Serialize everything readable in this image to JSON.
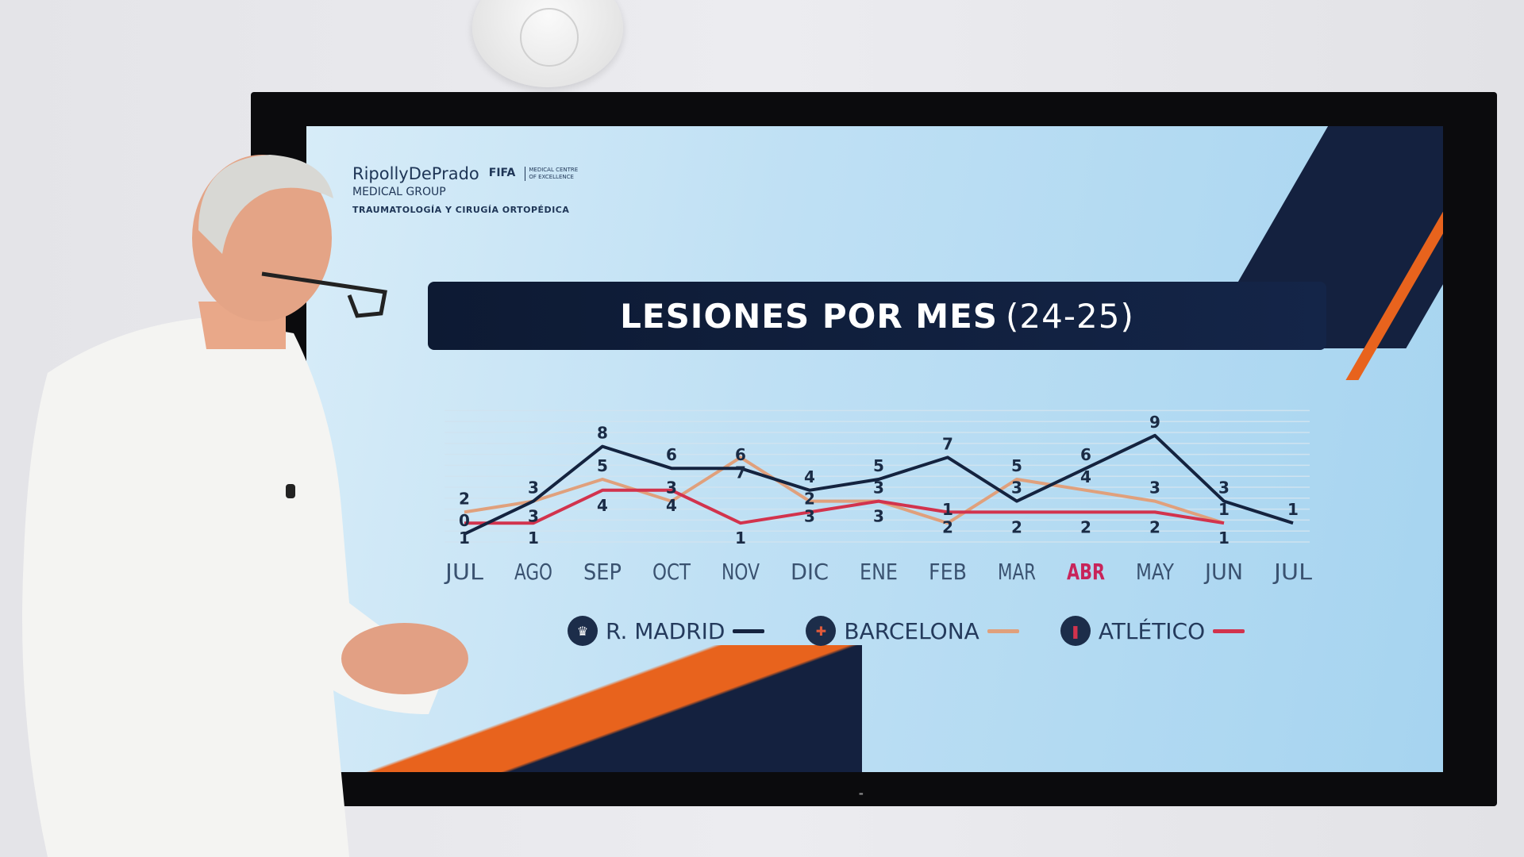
{
  "slide": {
    "logo": {
      "brand": "RipollyDePrado",
      "group": "MEDICAL GROUP",
      "fifa": "FIFA",
      "fifa_sub": "MEDICAL CENTRE OF EXCELLENCE",
      "specialty": "TRAUMATOLOGÍA Y CIRUGÍA ORTOPÉDICA"
    },
    "title": "LESIONES POR MES",
    "title_suffix": "(24-25)",
    "highlight_month": "ABR",
    "highlight_color": "#c8245a"
  },
  "chart_data": {
    "type": "line",
    "title": "LESIONES POR MES (24-25)",
    "categories": [
      "JUL",
      "AGO",
      "SEP",
      "OCT",
      "NOV",
      "DIC",
      "ENE",
      "FEB",
      "MAR",
      "ABR",
      "MAY",
      "JUN",
      "JUL"
    ],
    "ylim": [
      0,
      9
    ],
    "grid": true,
    "legend_position": "bottom",
    "series": [
      {
        "name": "R. MADRID",
        "color": "#14233f",
        "icon": "real-madrid-crest",
        "values": [
          0,
          3,
          8,
          6,
          6,
          4,
          5,
          7,
          3,
          6,
          9,
          3,
          1
        ]
      },
      {
        "name": "BARCELONA",
        "color": "#e0a07c",
        "icon": "barcelona-crest",
        "values": [
          2,
          3,
          5,
          3,
          7,
          3,
          3,
          1,
          5,
          4,
          3,
          1,
          null
        ]
      },
      {
        "name": "ATLÉTICO",
        "color": "#d2334d",
        "icon": "atletico-crest",
        "values": [
          1,
          1,
          4,
          4,
          1,
          2,
          3,
          2,
          2,
          2,
          2,
          1,
          null
        ]
      }
    ]
  }
}
